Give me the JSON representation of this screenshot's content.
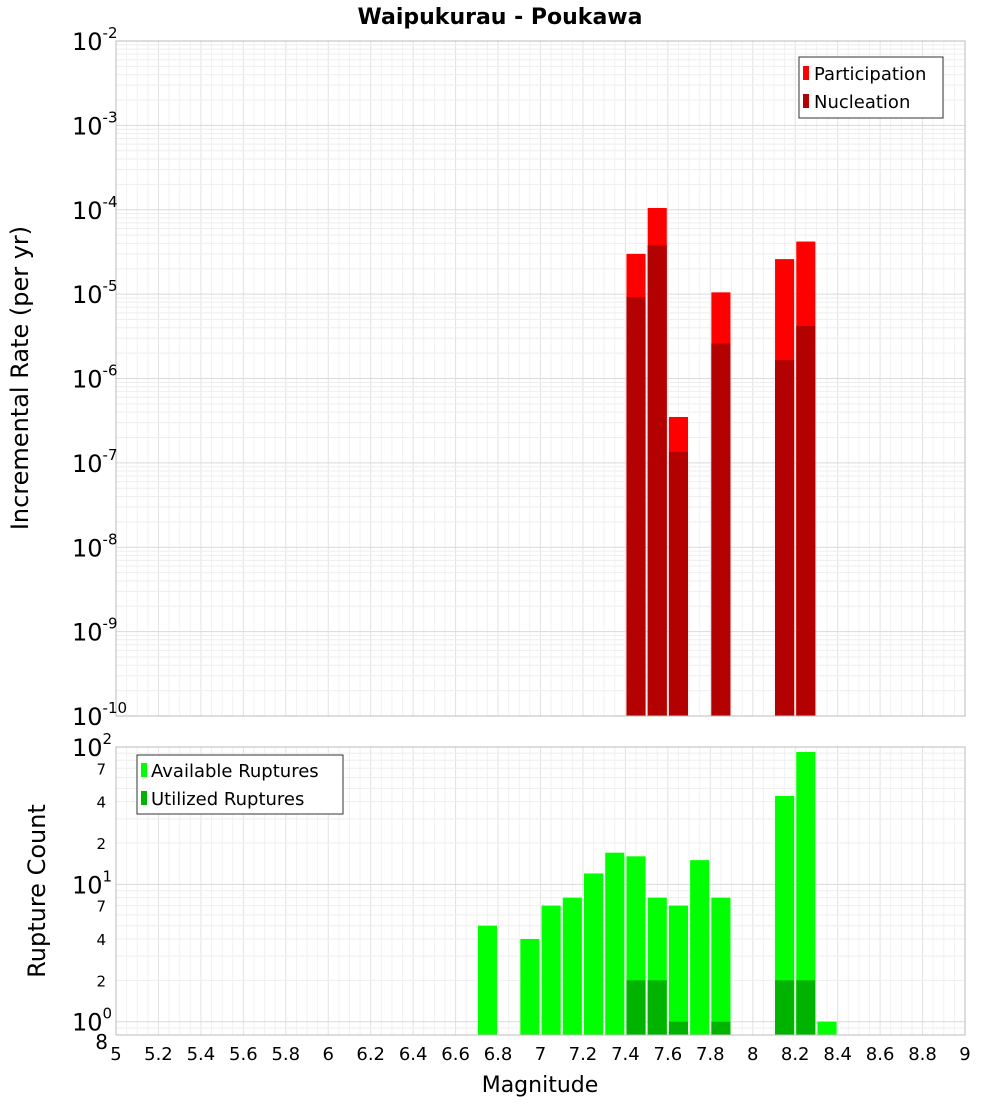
{
  "chart_data": [
    {
      "type": "bar",
      "title": "Waipukurau - Poukawa",
      "xlabel": "",
      "ylabel": "Incremental Rate (per yr)",
      "y_scale": "log",
      "ylim": [
        1e-10,
        0.01
      ],
      "xlim": [
        5,
        9
      ],
      "grid": true,
      "legend_position": "top-right",
      "y_ticks": [
        {
          "base": "10",
          "exp": "-10"
        },
        {
          "base": "10",
          "exp": "-9"
        },
        {
          "base": "10",
          "exp": "-8"
        },
        {
          "base": "10",
          "exp": "-7"
        },
        {
          "base": "10",
          "exp": "-6"
        },
        {
          "base": "10",
          "exp": "-5"
        },
        {
          "base": "10",
          "exp": "-4"
        },
        {
          "base": "10",
          "exp": "-3"
        },
        {
          "base": "10",
          "exp": "-2"
        }
      ],
      "bar_width": 0.09,
      "series": [
        {
          "name": "Participation",
          "color": "#ff0000",
          "x": [
            7.45,
            7.55,
            7.65,
            7.85,
            8.15,
            8.25
          ],
          "values": [
            3e-05,
            0.000105,
            3.5e-07,
            1.05e-05,
            2.6e-05,
            4.2e-05
          ]
        },
        {
          "name": "Nucleation",
          "color": "#b30000",
          "x": [
            7.45,
            7.55,
            7.65,
            7.85,
            8.15,
            8.25
          ],
          "values": [
            9.2e-06,
            3.8e-05,
            1.35e-07,
            2.6e-06,
            1.65e-06,
            4.2e-06
          ]
        }
      ]
    },
    {
      "type": "bar",
      "title": "",
      "xlabel": "Magnitude",
      "ylabel": "Rupture Count",
      "y_scale": "log",
      "ylim": [
        0.8,
        100
      ],
      "xlim": [
        5,
        9
      ],
      "grid": true,
      "legend_position": "top-left",
      "x_ticks": [
        "5",
        "5.2",
        "5.4",
        "5.6",
        "5.8",
        "6",
        "6.2",
        "6.4",
        "6.6",
        "6.8",
        "7",
        "7.2",
        "7.4",
        "7.6",
        "7.8",
        "8",
        "8.2",
        "8.4",
        "8.6",
        "8.8",
        "9"
      ],
      "y_major_ticks": [
        {
          "value": 1,
          "base": "10",
          "exp": "0"
        },
        {
          "value": 10,
          "base": "10",
          "exp": "1"
        },
        {
          "value": 100,
          "base": "10",
          "exp": "2"
        }
      ],
      "y_minor_ticks": [
        {
          "value": 0.8,
          "label": "8"
        },
        {
          "value": 2,
          "label": "2"
        },
        {
          "value": 4,
          "label": "4"
        },
        {
          "value": 7,
          "label": "7"
        },
        {
          "value": 20,
          "label": "2"
        },
        {
          "value": 40,
          "label": "4"
        },
        {
          "value": 70,
          "label": "7"
        }
      ],
      "bar_width": 0.09,
      "series": [
        {
          "name": "Available Ruptures",
          "color": "#00ff00",
          "x": [
            6.75,
            6.95,
            7.05,
            7.15,
            7.25,
            7.35,
            7.45,
            7.55,
            7.65,
            7.75,
            7.85,
            8.15,
            8.25,
            8.35
          ],
          "values": [
            5,
            4,
            7,
            8,
            12,
            17,
            16,
            8,
            7,
            15,
            8,
            44,
            92,
            1
          ]
        },
        {
          "name": "Utilized Ruptures",
          "color": "#00b300",
          "x": [
            7.45,
            7.55,
            7.65,
            7.85,
            8.15,
            8.25
          ],
          "values": [
            2,
            2,
            1,
            1,
            2,
            2
          ]
        }
      ]
    }
  ]
}
